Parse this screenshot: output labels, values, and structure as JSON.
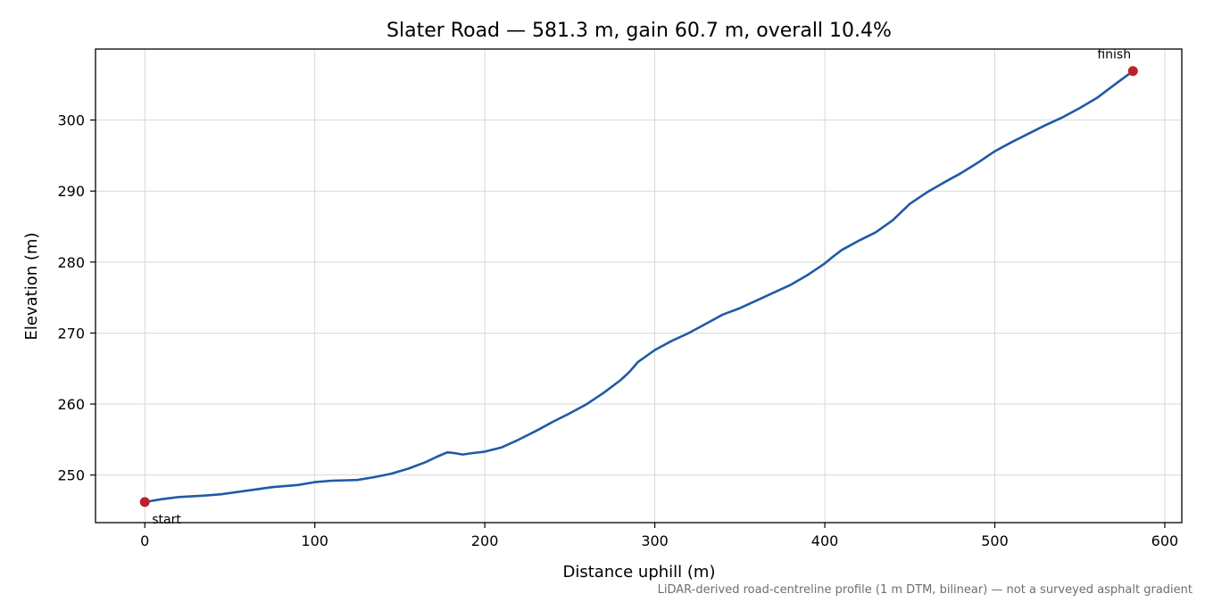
{
  "chart_data": {
    "type": "line",
    "title": "Slater Road — 581.3 m, gain 60.7 m, overall 10.4%",
    "xlabel": "Distance uphill (m)",
    "ylabel": "Elevation (m)",
    "xlim": [
      -29,
      610
    ],
    "ylim": [
      243.3,
      310.0
    ],
    "xticks": [
      0,
      100,
      200,
      300,
      400,
      500,
      600
    ],
    "yticks": [
      250,
      260,
      270,
      280,
      290,
      300
    ],
    "grid": true,
    "footnote": "LiDAR-derived road-centreline profile (1 m DTM, bilinear) — not a surveyed asphalt gradient",
    "colors": {
      "line": "#1f5aa6",
      "marker": "#c0202a",
      "grid": "#d9d9d9",
      "footnote": "#6e6e6e"
    },
    "series": [
      {
        "x": [
          0,
          10,
          20,
          35,
          45,
          60,
          75,
          90,
          100,
          110,
          125,
          135,
          145,
          155,
          165,
          172,
          178,
          182,
          187,
          193,
          200,
          210,
          220,
          230,
          240,
          250,
          260,
          270,
          280,
          285,
          290,
          300,
          310,
          320,
          330,
          340,
          350,
          360,
          370,
          380,
          390,
          400,
          405,
          410,
          420,
          430,
          440,
          450,
          460,
          470,
          480,
          490,
          500,
          510,
          520,
          530,
          540,
          550,
          560,
          570,
          581.3
        ],
        "y": [
          246.2,
          246.6,
          246.9,
          247.1,
          247.3,
          247.8,
          248.3,
          248.6,
          249.0,
          249.2,
          249.3,
          249.7,
          250.2,
          250.9,
          251.8,
          252.6,
          253.2,
          253.1,
          252.9,
          253.1,
          253.3,
          253.9,
          255.0,
          256.2,
          257.5,
          258.7,
          260.0,
          261.6,
          263.4,
          264.5,
          265.9,
          267.6,
          268.9,
          270.0,
          271.3,
          272.6,
          273.5,
          274.6,
          275.7,
          276.8,
          278.2,
          279.8,
          280.8,
          281.7,
          283.0,
          284.2,
          285.9,
          288.2,
          289.8,
          291.2,
          292.5,
          294.0,
          295.6,
          296.9,
          298.1,
          299.3,
          300.4,
          301.7,
          303.1,
          304.9,
          306.9
        ]
      }
    ],
    "annotations": [
      {
        "text": "start",
        "x": 0,
        "y": 246.2
      },
      {
        "text": "finish",
        "x": 581.3,
        "y": 306.9
      }
    ]
  }
}
